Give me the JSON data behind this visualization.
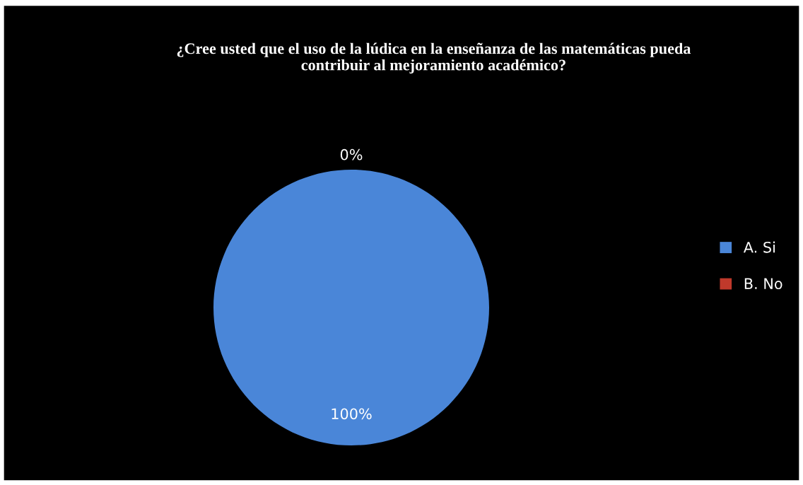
{
  "chart_data": {
    "type": "pie",
    "title": "¿Cree usted que el uso de la lúdica en la enseñanza de las matemáticas pueda\ncontribuir al mejoramiento académico?",
    "categories": [
      "A. Si",
      "B. No"
    ],
    "values": [
      100,
      0
    ],
    "colors": [
      "#4a86d8",
      "#c0392b"
    ],
    "value_labels": [
      "100%",
      "0%"
    ],
    "legend": "right"
  }
}
